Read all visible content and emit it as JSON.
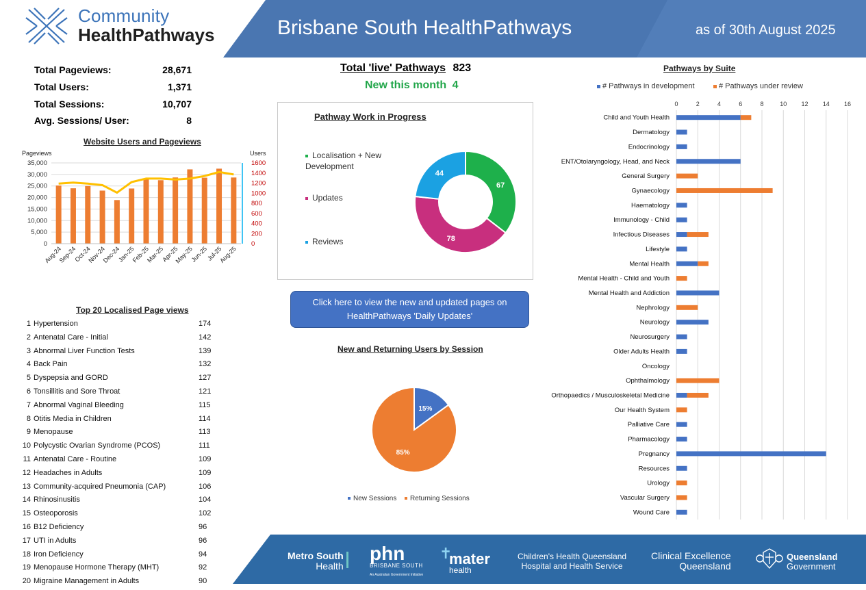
{
  "header": {
    "logo_line1": "Community",
    "logo_line2": "HealthPathways",
    "title": "Brisbane South HealthPathways",
    "as_of": "as of 30th August 2025",
    "band_color": "#4a76b1"
  },
  "stats": [
    {
      "label": "Total Pageviews:",
      "value": "28,671"
    },
    {
      "label": "Total Users:",
      "value": "1,371"
    },
    {
      "label": "Total Sessions:",
      "value": "10,707"
    },
    {
      "label": "Avg. Sessions/ User:",
      "value": "8"
    }
  ],
  "live": {
    "label": "Total 'live' Pathways",
    "value": "823",
    "new_label": "New this month",
    "new_value": "4"
  },
  "update_button": {
    "line1": "Click here to view the new and updated pages on",
    "line2": "HealthPathways 'Daily Updates'"
  },
  "top20": {
    "title": "Top 20 Localised Page views",
    "items": [
      {
        "rank": "1",
        "name": "Hypertension",
        "count": "174"
      },
      {
        "rank": "2",
        "name": "Antenatal Care - Initial",
        "count": "142"
      },
      {
        "rank": "3",
        "name": "Abnormal Liver Function Tests",
        "count": "139"
      },
      {
        "rank": "4",
        "name": "Back Pain",
        "count": "132"
      },
      {
        "rank": "5",
        "name": "Dyspepsia and GORD",
        "count": "127"
      },
      {
        "rank": "6",
        "name": "Tonsillitis and Sore Throat",
        "count": "121"
      },
      {
        "rank": "7",
        "name": "Abnormal Vaginal Bleeding",
        "count": "115"
      },
      {
        "rank": "8",
        "name": "Otitis Media in Children",
        "count": "114"
      },
      {
        "rank": "9",
        "name": "Menopause",
        "count": "113"
      },
      {
        "rank": "10",
        "name": "Polycystic Ovarian Syndrome (PCOS)",
        "count": "111"
      },
      {
        "rank": "11",
        "name": "Antenatal Care - Routine",
        "count": "109"
      },
      {
        "rank": "12",
        "name": "Headaches in Adults",
        "count": "109"
      },
      {
        "rank": "13",
        "name": "Community-acquired Pneumonia (CAP)",
        "count": "106"
      },
      {
        "rank": "14",
        "name": "Rhinosinusitis",
        "count": "104"
      },
      {
        "rank": "15",
        "name": "Osteoporosis",
        "count": "102"
      },
      {
        "rank": "16",
        "name": "B12 Deficiency",
        "count": "96"
      },
      {
        "rank": "17",
        "name": "UTI in Adults",
        "count": "96"
      },
      {
        "rank": "18",
        "name": "Iron Deficiency",
        "count": "94"
      },
      {
        "rank": "19",
        "name": "Menopause Hormone Therapy (MHT)",
        "count": "92"
      },
      {
        "rank": "20",
        "name": "Migraine Management in Adults",
        "count": "90"
      }
    ]
  },
  "chart_data": [
    {
      "id": "users-pageviews",
      "type": "bar",
      "title": "Website Users and Pageviews",
      "ylabel": "Pageviews",
      "y2label": "Users",
      "categories": [
        "Aug-24",
        "Sep-24",
        "Oct-24",
        "Nov-24",
        "Dec-24",
        "Jan-25",
        "Feb-25",
        "Mar-25",
        "Apr-25",
        "May-25",
        "Jun-25",
        "Jul-25",
        "Aug-25"
      ],
      "series": [
        {
          "type": "bar",
          "axis": "left",
          "color": "#ed7d31",
          "values": [
            25200,
            24000,
            25000,
            23000,
            18900,
            23900,
            28000,
            27500,
            28700,
            32200,
            28600,
            32500,
            28671
          ]
        },
        {
          "type": "line",
          "axis": "right",
          "color": "#ffc000",
          "values": [
            1190,
            1210,
            1190,
            1160,
            1010,
            1220,
            1290,
            1290,
            1270,
            1290,
            1340,
            1420,
            1371
          ]
        }
      ],
      "ylim": [
        0,
        35000
      ],
      "yticks": [
        "0",
        "5,000",
        "10,000",
        "15,000",
        "20,000",
        "25,000",
        "30,000",
        "35,000"
      ],
      "y2lim": [
        0,
        1600
      ],
      "y2ticks": [
        "0",
        "200",
        "400",
        "600",
        "800",
        "1000",
        "1200",
        "1400",
        "1600"
      ],
      "y2_color": "#c00000",
      "grid": true
    },
    {
      "id": "wip",
      "type": "pie",
      "title": "Pathway Work in Progress",
      "donut": true,
      "labels": [
        "Localisation + New Development",
        "Updates",
        "Reviews"
      ],
      "values": [
        67,
        78,
        44
      ],
      "colors": [
        "#1eb04b",
        "#c82f7e",
        "#1ba1e2"
      ],
      "legend": "left"
    },
    {
      "id": "sessions",
      "type": "pie",
      "title": "New and Returning Users by Session",
      "labels": [
        "New Sessions",
        "Returning Sessions"
      ],
      "values": [
        15,
        85
      ],
      "value_labels": [
        "15%",
        "85%"
      ],
      "colors": [
        "#4472c4",
        "#ed7d31"
      ],
      "legend": "bottom"
    },
    {
      "id": "suite",
      "type": "bar",
      "orientation": "horizontal",
      "stacked": true,
      "title": "Pathways by Suite",
      "categories": [
        "Child and Youth Health",
        "Dermatology",
        "Endocrinology",
        "ENT/Otolaryngology, Head, and Neck",
        "General Surgery",
        "Gynaecology",
        "Haematology",
        "Immunology - Child",
        "Infectious Diseases",
        "Lifestyle",
        "Mental Health",
        "Mental Health - Child and Youth",
        "Mental Health and Addiction",
        "Nephrology",
        "Neurology",
        "Neurosurgery",
        "Older Adults Health",
        "Oncology",
        "Ophthalmology",
        "Orthopaedics / Musculoskeletal Medicine",
        "Our Health System",
        "Palliative Care",
        "Pharmacology",
        "Pregnancy",
        "Resources",
        "Urology",
        "Vascular Surgery",
        "Wound Care"
      ],
      "series": [
        {
          "name": "# Pathways in development",
          "color": "#4472c4",
          "values": [
            6,
            1,
            1,
            6,
            0,
            0,
            1,
            1,
            1,
            1,
            2,
            0,
            4,
            0,
            3,
            1,
            1,
            0,
            0,
            1,
            0,
            1,
            1,
            14,
            1,
            0,
            0,
            1
          ]
        },
        {
          "name": "# Pathways under review",
          "color": "#ed7d31",
          "values": [
            1,
            0,
            0,
            0,
            2,
            9,
            0,
            0,
            2,
            0,
            1,
            1,
            0,
            2,
            0,
            0,
            0,
            0,
            4,
            2,
            1,
            0,
            0,
            0,
            0,
            1,
            1,
            0
          ]
        }
      ],
      "xlim": [
        0,
        16
      ],
      "xticks": [
        "0",
        "2",
        "4",
        "6",
        "8",
        "10",
        "12",
        "14",
        "16"
      ],
      "legend": "top",
      "grid": true
    }
  ],
  "footer": {
    "band_color": "#2e6aa5",
    "partners": {
      "metro_line1": "Metro South",
      "metro_line2": "Health",
      "phn_main": "phn",
      "phn_sub": "BRISBANE SOUTH",
      "phn_note": "An Australian Government Initiative",
      "mater_main": "mater",
      "mater_sub": "health",
      "chq_line1": "Children's Health Queensland",
      "chq_line2": "Hospital and Health Service",
      "ceq_line1": "Clinical Excellence",
      "ceq_line2": "Queensland",
      "qg_line1": "Queensland",
      "qg_line2": "Government"
    }
  }
}
